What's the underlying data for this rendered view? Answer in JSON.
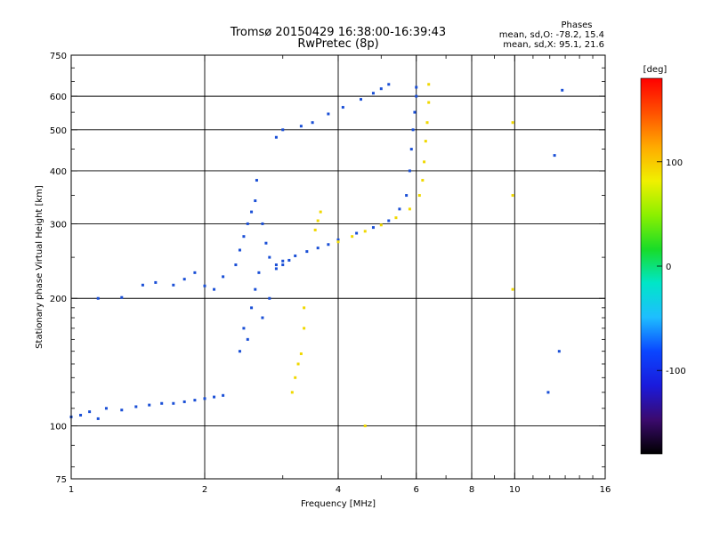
{
  "header": {
    "title": "Tromsø 20150429 16:38:00-16:39:43",
    "subtitle": "RwPretec (8p)"
  },
  "stats": {
    "heading": "Phases",
    "line1": "mean, sd,O: -78.2, 15.4",
    "line2": "mean, sd,X:  95.1, 21.6"
  },
  "chart_data": {
    "type": "scatter",
    "title": "Tromsø 20150429 16:38:00-16:39:43",
    "subtitle": "RwPretec (8p)",
    "xlabel": "Frequency [MHz]",
    "ylabel": "Stationary phase Virtual Height [km]",
    "x_scale": "log",
    "y_scale": "log",
    "xlim": [
      1,
      16
    ],
    "ylim": [
      75,
      750
    ],
    "x_ticks": [
      1,
      2,
      4,
      6,
      8,
      10,
      16
    ],
    "x_tick_labels": [
      "1",
      "2",
      "4",
      "6",
      "8",
      "10",
      "16"
    ],
    "y_ticks": [
      75,
      100,
      200,
      300,
      400,
      500,
      600,
      750
    ],
    "y_tick_labels": [
      "75",
      "100",
      "200",
      "300",
      "400",
      "500",
      "600",
      "750"
    ],
    "grid": true,
    "colorbar": {
      "label": "[deg]",
      "range": [
        -180,
        180
      ],
      "ticks": [
        100,
        0,
        -100
      ],
      "tick_labels": [
        "100",
        "0",
        "-100"
      ],
      "colors": [
        "#000000",
        "#3b0a6e",
        "#1a1adc",
        "#0a46ff",
        "#1ebeff",
        "#00e6c8",
        "#18dc28",
        "#8cf000",
        "#f0f000",
        "#ffaa00",
        "#ff5000",
        "#ff0000"
      ]
    },
    "series": [
      {
        "name": "O",
        "color": "#1a4fd6",
        "points": [
          [
            1.0,
            105
          ],
          [
            1.05,
            106
          ],
          [
            1.1,
            108
          ],
          [
            1.15,
            104
          ],
          [
            1.2,
            110
          ],
          [
            1.3,
            109
          ],
          [
            1.4,
            111
          ],
          [
            1.5,
            112
          ],
          [
            1.6,
            113
          ],
          [
            1.7,
            113
          ],
          [
            1.8,
            114
          ],
          [
            1.9,
            115
          ],
          [
            2.0,
            116
          ],
          [
            2.1,
            117
          ],
          [
            2.2,
            118
          ],
          [
            1.15,
            200
          ],
          [
            1.3,
            201
          ],
          [
            1.45,
            215
          ],
          [
            1.55,
            218
          ],
          [
            1.7,
            215
          ],
          [
            1.8,
            222
          ],
          [
            1.9,
            230
          ],
          [
            2.0,
            214
          ],
          [
            2.1,
            210
          ],
          [
            2.2,
            225
          ],
          [
            2.35,
            240
          ],
          [
            2.4,
            260
          ],
          [
            2.45,
            280
          ],
          [
            2.5,
            300
          ],
          [
            2.55,
            320
          ],
          [
            2.6,
            340
          ],
          [
            2.62,
            380
          ],
          [
            2.7,
            300
          ],
          [
            2.75,
            270
          ],
          [
            2.8,
            250
          ],
          [
            2.9,
            240
          ],
          [
            3.0,
            245
          ],
          [
            2.9,
            235
          ],
          [
            3.0,
            240
          ],
          [
            3.1,
            246
          ],
          [
            3.2,
            252
          ],
          [
            3.4,
            258
          ],
          [
            3.6,
            263
          ],
          [
            3.8,
            268
          ],
          [
            4.0,
            275
          ],
          [
            4.4,
            285
          ],
          [
            4.8,
            294
          ],
          [
            5.2,
            305
          ],
          [
            5.5,
            325
          ],
          [
            5.7,
            350
          ],
          [
            5.8,
            400
          ],
          [
            5.85,
            450
          ],
          [
            5.9,
            500
          ],
          [
            5.95,
            550
          ],
          [
            6.0,
            600
          ],
          [
            6.0,
            630
          ],
          [
            2.9,
            480
          ],
          [
            3.0,
            500
          ],
          [
            3.3,
            510
          ],
          [
            3.5,
            520
          ],
          [
            3.8,
            545
          ],
          [
            4.1,
            565
          ],
          [
            4.5,
            590
          ],
          [
            4.8,
            610
          ],
          [
            5.0,
            625
          ],
          [
            5.2,
            640
          ],
          [
            2.4,
            150
          ],
          [
            2.45,
            170
          ],
          [
            2.5,
            160
          ],
          [
            2.55,
            190
          ],
          [
            2.6,
            210
          ],
          [
            2.65,
            230
          ],
          [
            2.7,
            180
          ],
          [
            2.8,
            200
          ],
          [
            12.8,
            620
          ],
          [
            12.3,
            435
          ],
          [
            11.9,
            120
          ],
          [
            12.6,
            150
          ]
        ]
      },
      {
        "name": "X",
        "color": "#f0d800",
        "points": [
          [
            3.15,
            120
          ],
          [
            3.2,
            130
          ],
          [
            3.25,
            140
          ],
          [
            3.3,
            148
          ],
          [
            3.35,
            170
          ],
          [
            3.35,
            190
          ],
          [
            3.55,
            290
          ],
          [
            3.6,
            305
          ],
          [
            3.65,
            320
          ],
          [
            4.0,
            272
          ],
          [
            4.3,
            280
          ],
          [
            4.6,
            288
          ],
          [
            5.0,
            298
          ],
          [
            5.4,
            310
          ],
          [
            5.8,
            325
          ],
          [
            6.1,
            350
          ],
          [
            6.2,
            380
          ],
          [
            6.25,
            420
          ],
          [
            6.3,
            470
          ],
          [
            6.35,
            520
          ],
          [
            6.4,
            580
          ],
          [
            6.4,
            640
          ],
          [
            4.6,
            100
          ],
          [
            9.9,
            520
          ],
          [
            9.9,
            350
          ],
          [
            9.9,
            210
          ]
        ]
      }
    ]
  }
}
